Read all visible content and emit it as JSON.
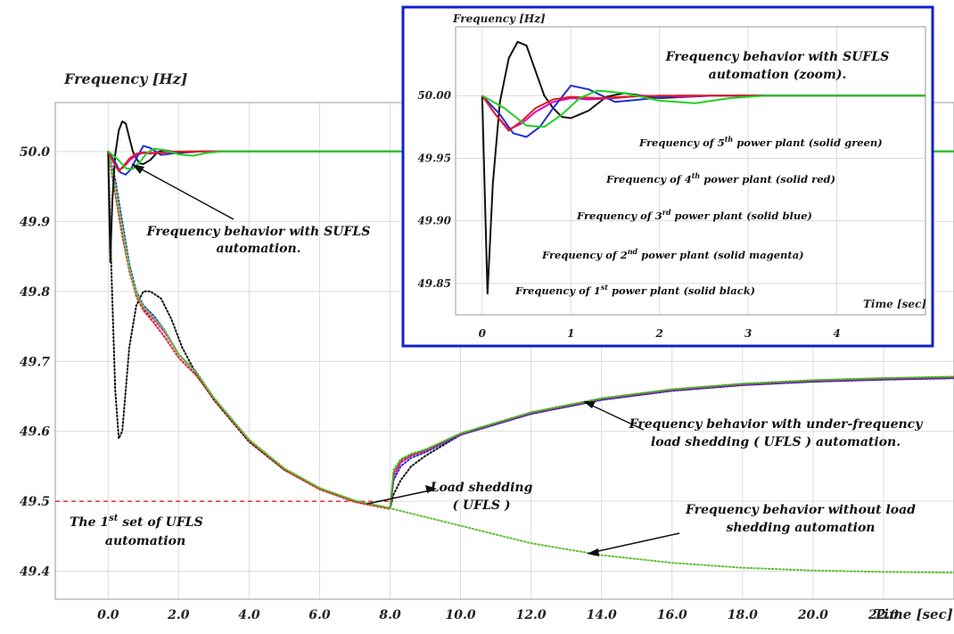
{
  "chart_data": [
    {
      "type": "line",
      "ylabel": "Frequency [Hz]",
      "xlabel": "Time [sec]",
      "xlim": [
        -1.5,
        24
      ],
      "ylim": [
        49.36,
        50.07
      ],
      "x_ticks": [
        "0.0",
        "2.0",
        "4.0",
        "6.0",
        "8.0",
        "10.0",
        "12.0",
        "14.0",
        "16.0",
        "18.0",
        "20.0",
        "22.0"
      ],
      "y_ticks": [
        "49.4",
        "49.5",
        "49.6",
        "49.7",
        "49.8",
        "49.9",
        "50.0"
      ],
      "grid": true,
      "threshold": {
        "y": 49.5,
        "x_end": 8.0,
        "color": "#e02020"
      },
      "series": [
        {
          "style": "solid",
          "color": "#111111",
          "x": [
            0,
            0.03,
            0.06,
            0.12,
            0.2,
            0.3,
            0.4,
            0.5,
            0.6,
            0.7,
            0.8,
            0.9,
            1.0,
            1.2,
            1.4,
            1.6,
            1.8,
            2.0,
            2.3,
            2.6,
            3.0,
            24
          ],
          "y": [
            50.0,
            49.92,
            49.842,
            49.93,
            49.995,
            50.03,
            50.043,
            50.04,
            50.02,
            50.0,
            49.99,
            49.983,
            49.982,
            49.988,
            49.999,
            50.002,
            50.0,
            49.998,
            49.999,
            50.0,
            50.0,
            50.0
          ]
        },
        {
          "style": "solid",
          "color": "#e000c0",
          "x": [
            0,
            0.15,
            0.3,
            0.45,
            0.6,
            0.8,
            1.0,
            1.2,
            1.5,
            1.8,
            2.2,
            2.6,
            24
          ],
          "y": [
            50.0,
            49.985,
            49.973,
            49.978,
            49.987,
            49.995,
            49.998,
            49.997,
            49.998,
            50.0,
            49.999,
            50.0,
            50.0
          ]
        },
        {
          "style": "solid",
          "color": "#2030d0",
          "x": [
            0,
            0.2,
            0.35,
            0.5,
            0.65,
            0.8,
            1.0,
            1.2,
            1.5,
            1.8,
            2.2,
            2.6,
            24
          ],
          "y": [
            50.0,
            49.985,
            49.97,
            49.967,
            49.975,
            49.99,
            50.008,
            50.005,
            49.995,
            49.997,
            50.0,
            50.0,
            50.0
          ]
        },
        {
          "style": "solid",
          "color": "#e02020",
          "x": [
            0,
            0.15,
            0.3,
            0.45,
            0.6,
            0.8,
            1.0,
            1.3,
            1.6,
            2.0,
            2.4,
            24
          ],
          "y": [
            50.0,
            49.985,
            49.972,
            49.98,
            49.99,
            49.997,
            49.999,
            49.998,
            49.999,
            50.0,
            50.0,
            50.0
          ]
        },
        {
          "style": "solid",
          "color": "#20d020",
          "x": [
            0,
            0.25,
            0.5,
            0.7,
            0.9,
            1.1,
            1.3,
            1.6,
            2.0,
            2.4,
            2.8,
            3.2,
            24
          ],
          "y": [
            50.0,
            49.99,
            49.976,
            49.975,
            49.985,
            49.998,
            50.004,
            50.002,
            49.996,
            49.994,
            49.998,
            50.0,
            50.0
          ]
        },
        {
          "style": "dotted",
          "color": "#111111",
          "x": [
            0,
            0.1,
            0.2,
            0.3,
            0.4,
            0.5,
            0.6,
            0.8,
            1.0,
            1.2,
            1.5,
            1.8,
            2.1,
            2.5,
            3.0,
            4.0,
            5.0,
            6.0,
            7.0,
            8.0,
            8.1,
            8.3,
            8.6,
            9.0,
            10,
            12,
            14,
            16,
            18,
            20,
            22,
            24
          ],
          "y": [
            50.0,
            49.82,
            49.66,
            49.59,
            49.6,
            49.66,
            49.72,
            49.78,
            49.8,
            49.8,
            49.79,
            49.76,
            49.72,
            49.682,
            49.645,
            49.585,
            49.545,
            49.518,
            49.5,
            49.49,
            49.51,
            49.53,
            49.55,
            49.565,
            49.595,
            49.625,
            49.645,
            49.658,
            49.666,
            49.671,
            49.674,
            49.676
          ]
        },
        {
          "style": "dotted",
          "color": "#2030d0",
          "x": [
            0,
            0.2,
            0.4,
            0.6,
            0.8,
            1.0,
            1.3,
            1.6,
            2.0,
            2.5,
            3.0,
            4.0,
            5.0,
            6.0,
            7.0,
            8.0,
            8.1,
            8.3,
            8.6,
            9.0,
            10,
            12,
            14,
            16,
            18,
            20,
            22,
            24
          ],
          "y": [
            50.0,
            49.96,
            49.9,
            49.84,
            49.8,
            49.78,
            49.765,
            49.745,
            49.71,
            49.685,
            49.648,
            49.588,
            49.547,
            49.519,
            49.501,
            49.49,
            49.53,
            49.55,
            49.562,
            49.57,
            49.595,
            49.625,
            49.645,
            49.658,
            49.666,
            49.671,
            49.674,
            49.676
          ]
        },
        {
          "style": "dotted",
          "color": "#e000c0",
          "x": [
            0,
            0.2,
            0.4,
            0.6,
            0.8,
            1.0,
            1.3,
            1.6,
            2.0,
            2.5,
            3.0,
            4.0,
            5.0,
            6.0,
            7.0,
            8.0,
            8.1,
            8.3,
            8.6,
            9.0,
            10,
            12,
            14,
            16,
            18,
            20,
            22,
            24
          ],
          "y": [
            50.0,
            49.95,
            49.89,
            49.83,
            49.795,
            49.775,
            49.76,
            49.742,
            49.71,
            49.683,
            49.647,
            49.587,
            49.546,
            49.518,
            49.5,
            49.49,
            49.535,
            49.555,
            49.565,
            49.572,
            49.596,
            49.626,
            49.646,
            49.659,
            49.667,
            49.672,
            49.675,
            49.677
          ]
        },
        {
          "style": "dotted",
          "color": "#e02020",
          "x": [
            0,
            0.2,
            0.4,
            0.6,
            0.8,
            1.0,
            1.3,
            1.6,
            2.0,
            2.5,
            3.0,
            4.0,
            5.0,
            6.0,
            7.0,
            8.0,
            8.1,
            8.3,
            8.6,
            9.0,
            10,
            12,
            14,
            16,
            18,
            20,
            22,
            24
          ],
          "y": [
            50.0,
            49.94,
            49.88,
            49.83,
            49.793,
            49.773,
            49.755,
            49.735,
            49.705,
            49.68,
            49.646,
            49.586,
            49.545,
            49.517,
            49.499,
            49.489,
            49.54,
            49.558,
            49.566,
            49.573,
            49.597,
            49.627,
            49.647,
            49.66,
            49.668,
            49.673,
            49.676,
            49.678
          ]
        },
        {
          "style": "dotted",
          "color": "#20d020",
          "x": [
            0,
            0.2,
            0.4,
            0.6,
            0.8,
            1.0,
            1.3,
            1.6,
            2.0,
            2.5,
            3.0,
            4.0,
            5.0,
            6.0,
            7.0,
            8.0,
            8.1,
            8.3,
            8.6,
            9.0,
            10,
            12,
            14,
            16,
            18,
            20,
            22,
            24
          ],
          "y": [
            50.0,
            49.95,
            49.89,
            49.835,
            49.797,
            49.778,
            49.762,
            49.745,
            49.71,
            49.684,
            49.648,
            49.588,
            49.547,
            49.519,
            49.501,
            49.49,
            49.545,
            49.56,
            49.568,
            49.574,
            49.597,
            49.627,
            49.647,
            49.66,
            49.668,
            49.673,
            49.676,
            49.678
          ]
        },
        {
          "style": "dotted",
          "color": "#60c030",
          "x": [
            0,
            0.2,
            0.4,
            0.6,
            0.8,
            1.0,
            1.3,
            1.6,
            2.0,
            2.5,
            3.0,
            4.0,
            5.0,
            6.0,
            7.0,
            8.0,
            10,
            12,
            14,
            16,
            18,
            20,
            22,
            24
          ],
          "y": [
            50.0,
            49.95,
            49.89,
            49.835,
            49.797,
            49.778,
            49.762,
            49.745,
            49.71,
            49.684,
            49.648,
            49.588,
            49.547,
            49.519,
            49.501,
            49.49,
            49.465,
            49.44,
            49.423,
            49.412,
            49.405,
            49.401,
            49.399,
            49.398
          ]
        }
      ],
      "annotations": {
        "sufls": [
          "Frequency behavior with SUFLS",
          "automation."
        ],
        "ufls": [
          "Frequency behavior with under-frequency",
          "load shedding ( UFLS ) automation."
        ],
        "load_shedding": [
          "Load shedding",
          "( UFLS )"
        ],
        "first_set": [
          "The 1",
          "st",
          " set of UFLS",
          "automation"
        ],
        "without": [
          "Frequency behavior without load",
          "shedding automation"
        ]
      }
    },
    {
      "type": "line",
      "ylabel": "Frequency [Hz]",
      "xlabel": "Time [sec]",
      "xlim": [
        -0.3,
        5.0
      ],
      "ylim": [
        49.825,
        50.055
      ],
      "x_ticks": [
        "0",
        "1",
        "2",
        "3",
        "4"
      ],
      "y_ticks": [
        "49.85",
        "49.90",
        "49.95",
        "50.00"
      ],
      "grid": true,
      "border_color": "#1020d0",
      "title_lines": [
        "Frequency behavior with SUFLS",
        "automation (zoom)."
      ],
      "legend": [
        {
          "pre": "Frequency of 5",
          "sup": "th",
          "post": " power plant (solid green)"
        },
        {
          "pre": "Frequency of 4",
          "sup": "th",
          "post": " power plant (solid red)"
        },
        {
          "pre": "Frequency of 3",
          "sup": "rd",
          "post": " power plant (solid blue)"
        },
        {
          "pre": "Frequency of 2",
          "sup": "nd",
          "post": " power plant (solid magenta)"
        },
        {
          "pre": "Frequency of 1",
          "sup": "st",
          "post": " power plant (solid black)"
        }
      ]
    }
  ]
}
